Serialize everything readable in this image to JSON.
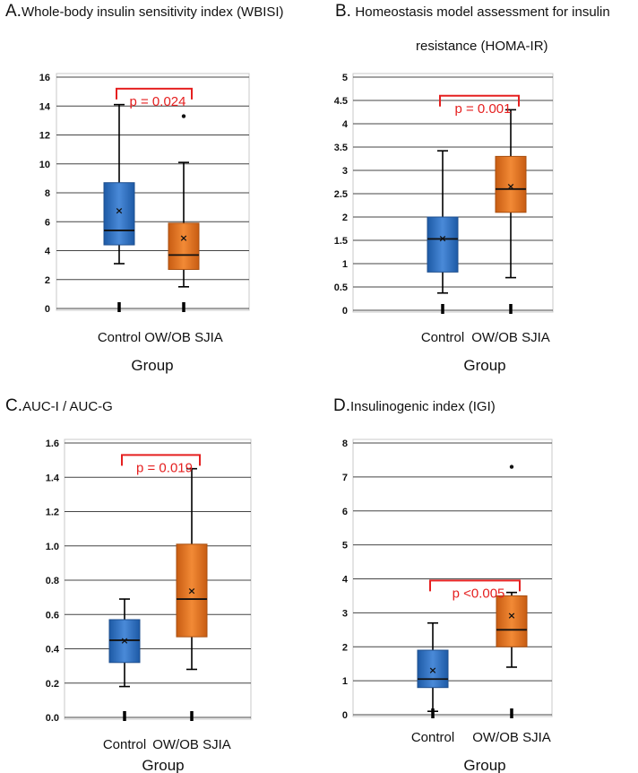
{
  "colors": {
    "control_fill": "#2f6db8",
    "control_edge": "#1f4f8e",
    "sjia_fill": "#e0701e",
    "sjia_edge": "#a84f10",
    "pvalue": "#e52020",
    "grid": "#444444",
    "frame": "#c8c8c8"
  },
  "panels": [
    {
      "letter": "A.",
      "title": "Whole-body insulin sensitivity index (WBISI)",
      "title_line2": ""
    },
    {
      "letter": "B.",
      "title": "Homeostasis model assessment for insulin",
      "title_line2": "resistance (HOMA-IR)"
    },
    {
      "letter": "C.",
      "title": "AUC-I / AUC-G",
      "title_line2": ""
    },
    {
      "letter": "D.",
      "title": "Insulinogenic index (IGI)",
      "title_line2": ""
    }
  ],
  "chart_data": [
    {
      "type": "boxplot",
      "title": "Whole-body insulin sensitivity index (WBISI)",
      "xlabel": "Group",
      "categories": [
        "Control",
        "OW/OB  SJIA"
      ],
      "ylim": [
        0,
        16
      ],
      "yticks": [
        0,
        2,
        4,
        6,
        8,
        10,
        12,
        14,
        16
      ],
      "tick_labels": [
        "0",
        "2",
        "4",
        "6",
        "8",
        "10",
        "12",
        "14",
        "16"
      ],
      "boxes": [
        {
          "min": 3.1,
          "q1": 4.4,
          "median": 5.4,
          "q3": 8.7,
          "max": 14.1,
          "mean": 6.8,
          "outliers": []
        },
        {
          "min": 1.5,
          "q1": 2.7,
          "median": 3.7,
          "q3": 5.9,
          "max": 10.1,
          "mean": 4.9,
          "outliers": [
            13.3
          ]
        }
      ],
      "pvalue": "p = 0.024",
      "bracket_y": 15.2
    },
    {
      "type": "boxplot",
      "title": "Homeostasis model assessment for insulin resistance (HOMA-IR)",
      "xlabel": "Group",
      "categories": [
        "Control",
        "OW/OB  SJIA"
      ],
      "ylim": [
        0,
        5
      ],
      "yticks": [
        0,
        0.5,
        1,
        1.5,
        2,
        2.5,
        3,
        3.5,
        4,
        4.5,
        5
      ],
      "tick_labels": [
        "0",
        "0.5",
        "1",
        "1.5",
        "2",
        "2.5",
        "3",
        "3.5",
        "4",
        "4.5",
        "5"
      ],
      "boxes": [
        {
          "min": 0.37,
          "q1": 0.82,
          "median": 1.53,
          "q3": 2.0,
          "max": 3.42,
          "mean": 1.55,
          "outliers": []
        },
        {
          "min": 0.7,
          "q1": 2.1,
          "median": 2.6,
          "q3": 3.3,
          "max": 4.3,
          "mean": 2.66,
          "outliers": []
        }
      ],
      "pvalue": "p = 0.001",
      "bracket_y": 4.6
    },
    {
      "type": "boxplot",
      "title": "AUC-I / AUC-G",
      "xlabel": "Group",
      "categories": [
        "Control",
        "OW/OB  SJIA"
      ],
      "ylim": [
        0,
        1.6
      ],
      "yticks": [
        0,
        0.2,
        0.4,
        0.6,
        0.8,
        1.0,
        1.2,
        1.4,
        1.6
      ],
      "tick_labels": [
        "0.0",
        "0.2",
        "0.4",
        "0.6",
        "0.8",
        "1.0",
        "1.2",
        "1.4",
        "1.6"
      ],
      "boxes": [
        {
          "min": 0.18,
          "q1": 0.32,
          "median": 0.45,
          "q3": 0.57,
          "max": 0.69,
          "mean": 0.45,
          "outliers": []
        },
        {
          "min": 0.28,
          "q1": 0.47,
          "median": 0.69,
          "q3": 1.01,
          "max": 1.45,
          "mean": 0.74,
          "outliers": []
        }
      ],
      "pvalue": "p = 0.019",
      "bracket_y": 1.53
    },
    {
      "type": "boxplot",
      "title": "Insulinogenic index (IGI)",
      "xlabel": "Group",
      "categories": [
        "Control",
        "OW/OB  SJIA"
      ],
      "ylim": [
        0,
        8
      ],
      "yticks": [
        0,
        1,
        2,
        3,
        4,
        5,
        6,
        7,
        8
      ],
      "tick_labels": [
        "0",
        "1",
        "2",
        "3",
        "4",
        "5",
        "6",
        "7",
        "8"
      ],
      "boxes": [
        {
          "min": 0.1,
          "q1": 0.8,
          "median": 1.05,
          "q3": 1.9,
          "max": 2.7,
          "mean": 1.32,
          "outliers": []
        },
        {
          "min": 1.4,
          "q1": 2.0,
          "median": 2.5,
          "q3": 3.5,
          "max": 3.6,
          "mean": 2.93,
          "outliers": [
            7.3
          ]
        }
      ],
      "pvalue": "p <0.005",
      "bracket_y": 3.95
    }
  ]
}
